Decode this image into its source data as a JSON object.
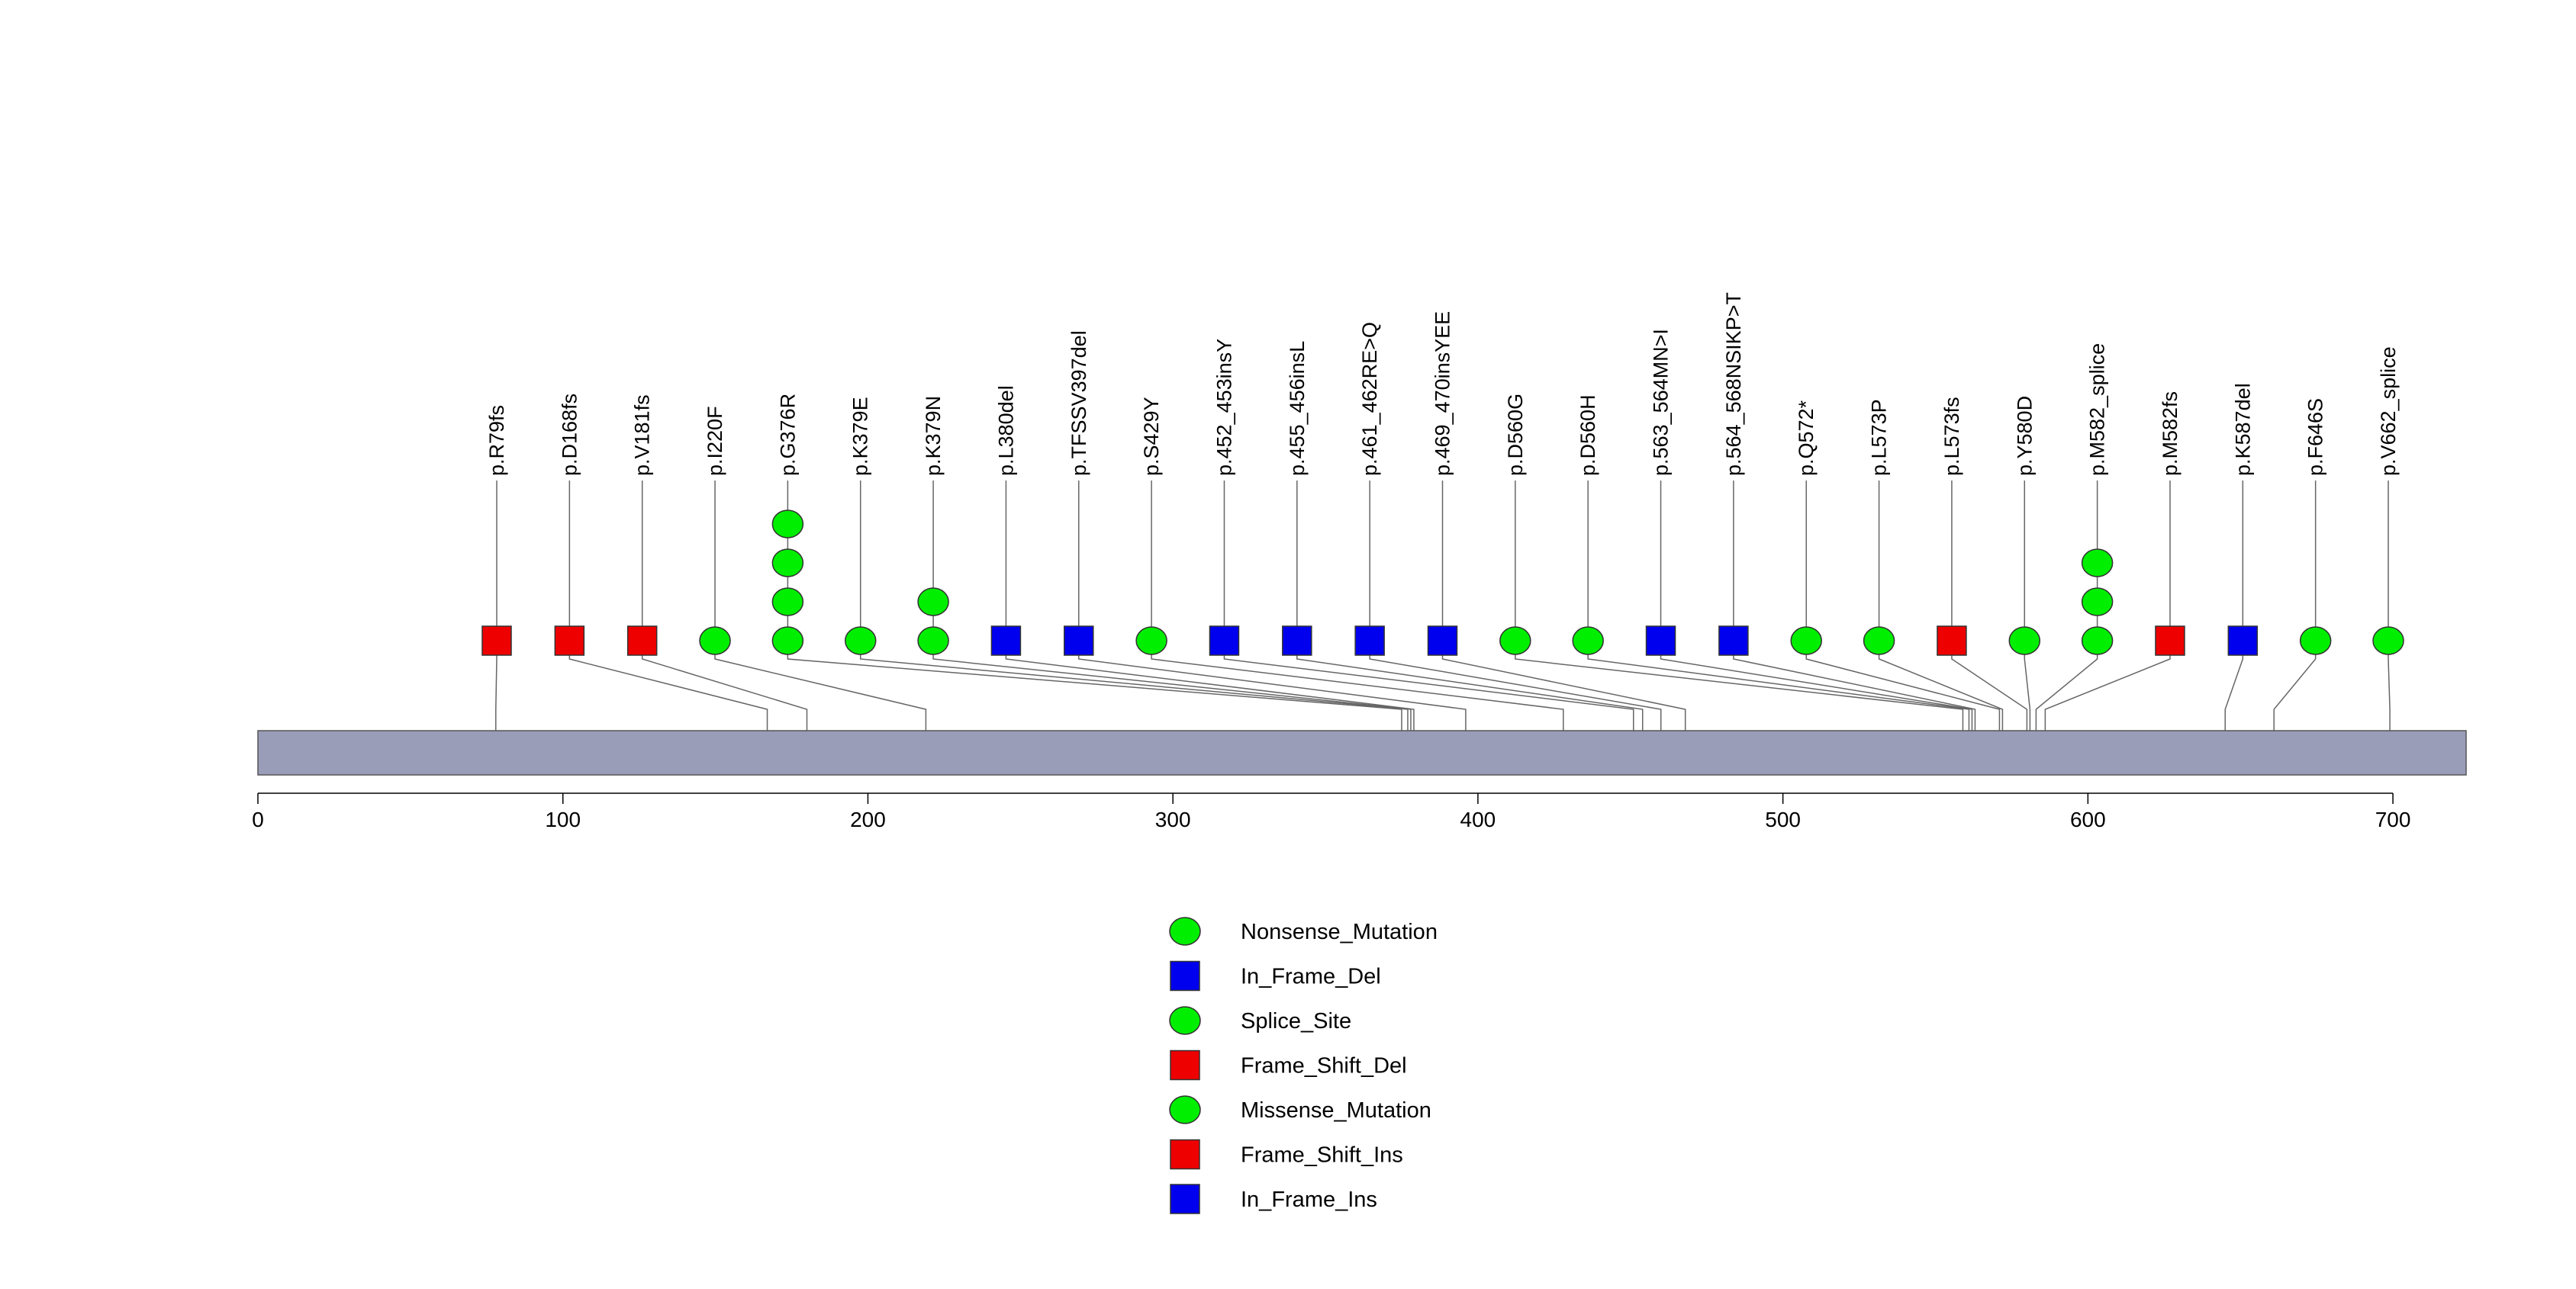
{
  "chart_data": {
    "type": "lollipop",
    "title": "",
    "xlabel": "",
    "ylabel": "",
    "xlim": [
      0,
      724
    ],
    "x_ticks": [
      0,
      100,
      200,
      300,
      400,
      500,
      600,
      700
    ],
    "track_color": "#9a9db8",
    "mutation_types": [
      {
        "name": "Nonsense_Mutation",
        "shape": "circle",
        "color": "#00ee00"
      },
      {
        "name": "In_Frame_Del",
        "shape": "square",
        "color": "#0000ee"
      },
      {
        "name": "Splice_Site",
        "shape": "circle",
        "color": "#00ee00"
      },
      {
        "name": "Frame_Shift_Del",
        "shape": "square",
        "color": "#ee0000"
      },
      {
        "name": "Missense_Mutation",
        "shape": "circle",
        "color": "#00ee00"
      },
      {
        "name": "Frame_Shift_Ins",
        "shape": "square",
        "color": "#ee0000"
      },
      {
        "name": "In_Frame_Ins",
        "shape": "square",
        "color": "#0000ee"
      }
    ],
    "mutations": [
      {
        "label": "p.R79fs",
        "position": 78,
        "count": 1,
        "shape": "square",
        "color": "#ee0000"
      },
      {
        "label": "p.D168fs",
        "position": 167,
        "count": 1,
        "shape": "square",
        "color": "#ee0000"
      },
      {
        "label": "p.V181fs",
        "position": 180,
        "count": 1,
        "shape": "square",
        "color": "#ee0000"
      },
      {
        "label": "p.I220F",
        "position": 219,
        "count": 1,
        "shape": "circle",
        "color": "#00ee00"
      },
      {
        "label": "p.G376R",
        "position": 375,
        "count": 4,
        "shape": "circle",
        "color": "#00ee00"
      },
      {
        "label": "p.K379E",
        "position": 377,
        "count": 1,
        "shape": "circle",
        "color": "#00ee00"
      },
      {
        "label": "p.K379N",
        "position": 378,
        "count": 2,
        "shape": "circle",
        "color": "#00ee00"
      },
      {
        "label": "p.L380del",
        "position": 379,
        "count": 1,
        "shape": "square",
        "color": "#0000ee"
      },
      {
        "label": "p.TFSSV397del",
        "position": 396,
        "count": 1,
        "shape": "square",
        "color": "#0000ee"
      },
      {
        "label": "p.S429Y",
        "position": 428,
        "count": 1,
        "shape": "circle",
        "color": "#00ee00"
      },
      {
        "label": "p.452_453insY",
        "position": 451,
        "count": 1,
        "shape": "square",
        "color": "#0000ee"
      },
      {
        "label": "p.455_456insL",
        "position": 454,
        "count": 1,
        "shape": "square",
        "color": "#0000ee"
      },
      {
        "label": "p.461_462RE>Q",
        "position": 460,
        "count": 1,
        "shape": "square",
        "color": "#0000ee"
      },
      {
        "label": "p.469_470insYEE",
        "position": 468,
        "count": 1,
        "shape": "square",
        "color": "#0000ee"
      },
      {
        "label": "p.D560G",
        "position": 559,
        "count": 1,
        "shape": "circle",
        "color": "#00ee00"
      },
      {
        "label": "p.D560H",
        "position": 561,
        "count": 1,
        "shape": "circle",
        "color": "#00ee00"
      },
      {
        "label": "p.563_564MN>I",
        "position": 562,
        "count": 1,
        "shape": "square",
        "color": "#0000ee"
      },
      {
        "label": "p.564_568NSIKP>T",
        "position": 563,
        "count": 1,
        "shape": "square",
        "color": "#0000ee"
      },
      {
        "label": "p.Q572*",
        "position": 571,
        "count": 1,
        "shape": "circle",
        "color": "#00ee00"
      },
      {
        "label": "p.L573P",
        "position": 572,
        "count": 1,
        "shape": "circle",
        "color": "#00ee00"
      },
      {
        "label": "p.L573fs",
        "position": 580,
        "count": 1,
        "shape": "square",
        "color": "#ee0000"
      },
      {
        "label": "p.Y580D",
        "position": 581,
        "count": 1,
        "shape": "circle",
        "color": "#00ee00"
      },
      {
        "label": "p.M582_splice",
        "position": 583,
        "count": 3,
        "shape": "circle",
        "color": "#00ee00"
      },
      {
        "label": "p.M582fs",
        "position": 586,
        "count": 1,
        "shape": "square",
        "color": "#ee0000"
      },
      {
        "label": "p.K587del",
        "position": 645,
        "count": 1,
        "shape": "square",
        "color": "#0000ee"
      },
      {
        "label": "p.F646S",
        "position": 661,
        "count": 1,
        "shape": "circle",
        "color": "#00ee00"
      },
      {
        "label": "p.V662_splice",
        "position": 699,
        "count": 1,
        "shape": "circle",
        "color": "#00ee00"
      }
    ]
  }
}
